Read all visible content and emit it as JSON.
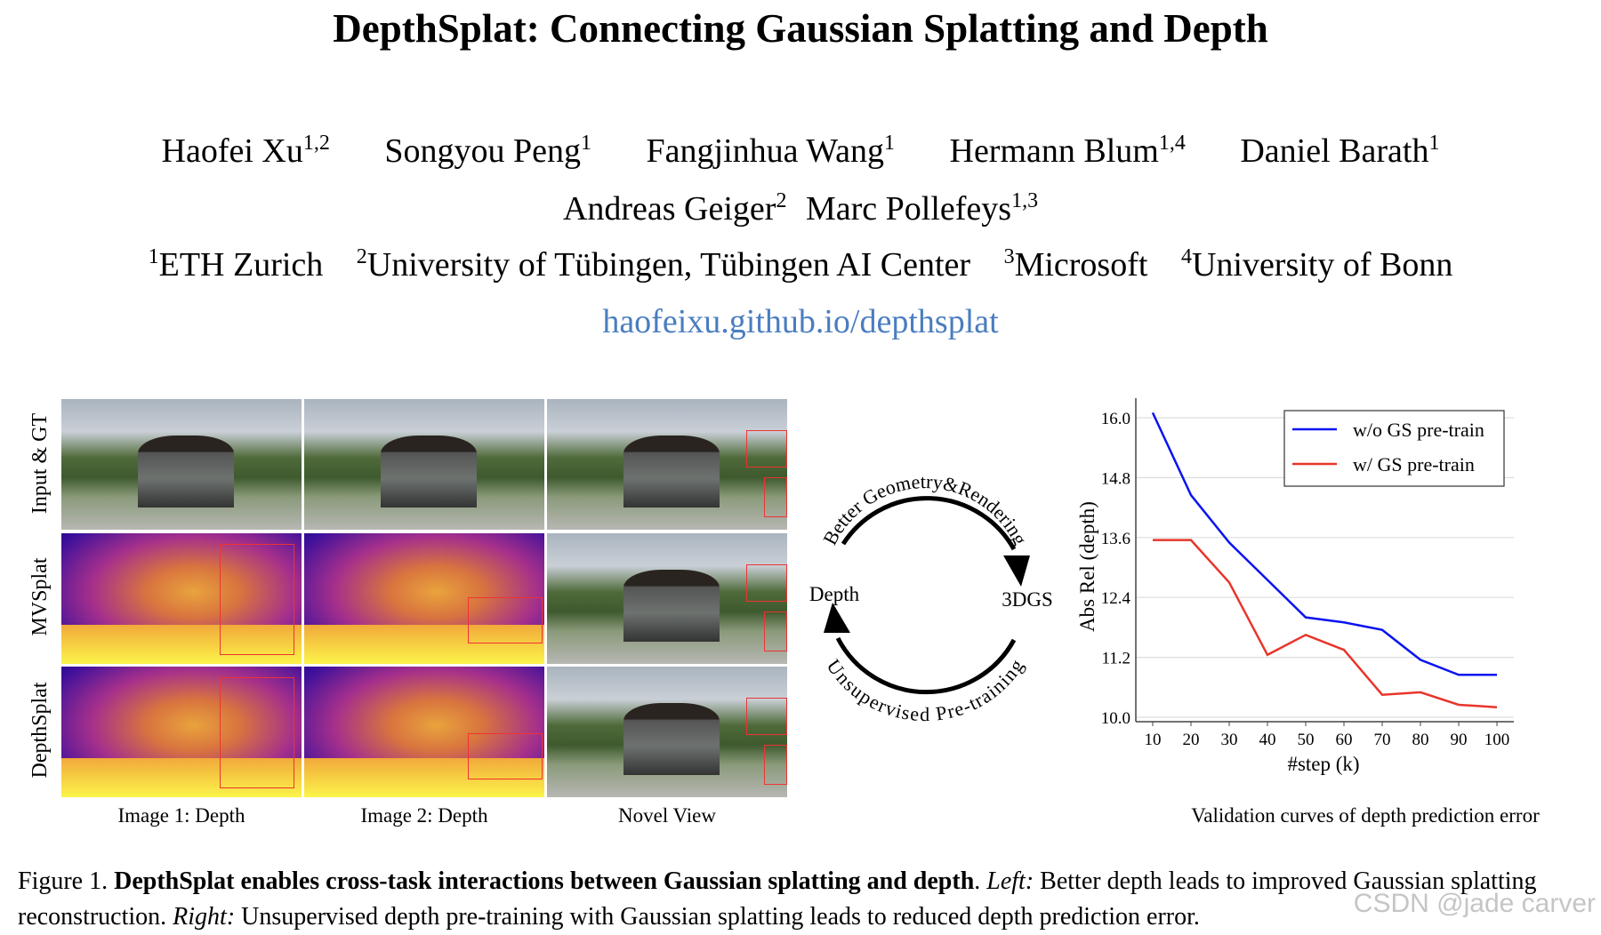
{
  "title": "DepthSplat: Connecting Gaussian Splatting and Depth",
  "authors_line1": [
    {
      "name": "Haofei Xu",
      "sup": "1,2"
    },
    {
      "name": "Songyou Peng",
      "sup": "1"
    },
    {
      "name": "Fangjinhua Wang",
      "sup": "1"
    },
    {
      "name": "Hermann Blum",
      "sup": "1,4"
    },
    {
      "name": "Daniel Barath",
      "sup": "1"
    }
  ],
  "authors_line2": [
    {
      "name": "Andreas Geiger",
      "sup": "2"
    },
    {
      "name": "Marc Pollefeys",
      "sup": "1,3"
    }
  ],
  "affiliations": [
    {
      "sup": "1",
      "name": "ETH Zurich"
    },
    {
      "sup": "2",
      "name": "University of Tübingen, Tübingen AI Center"
    },
    {
      "sup": "3",
      "name": "Microsoft"
    },
    {
      "sup": "4",
      "name": "University of Bonn"
    }
  ],
  "link": "haofeixu.github.io/depthsplat",
  "grid": {
    "row_labels": [
      "Input & GT",
      "MVSplat",
      "DepthSplat"
    ],
    "col_labels": [
      "Image 1: Depth",
      "Image 2: Depth",
      "Novel View"
    ]
  },
  "cycle": {
    "left": "Depth",
    "right": "3DGS",
    "top_arc": "Better Geometry&Rendering",
    "bottom_arc": "Unsupervised Pre-training"
  },
  "chart_caption": "Validation curves of depth prediction error",
  "chart_data": {
    "type": "line",
    "xlabel": "#step (k)",
    "ylabel": "Abs Rel (depth)",
    "x": [
      10,
      20,
      30,
      40,
      50,
      60,
      70,
      80,
      90,
      100
    ],
    "xticks": [
      "10",
      "20",
      "30",
      "40",
      "50",
      "60",
      "70",
      "80",
      "90",
      "100"
    ],
    "yticks": [
      "10.0",
      "11.2",
      "12.4",
      "13.6",
      "14.8",
      "16.0"
    ],
    "ylim": [
      10.0,
      16.0
    ],
    "grid": "horizontal",
    "legend": "top-right",
    "series": [
      {
        "name": "w/o GS pre-train",
        "color": "#0a14f0",
        "values": [
          16.1,
          14.45,
          13.5,
          12.75,
          12.0,
          11.9,
          11.75,
          11.15,
          10.85,
          10.85
        ]
      },
      {
        "name": "w/ GS pre-train",
        "color": "#e8352b",
        "values": [
          13.55,
          13.55,
          12.7,
          11.25,
          11.65,
          11.35,
          10.45,
          10.5,
          10.25,
          10.2
        ]
      }
    ]
  },
  "caption": {
    "label": "Figure 1.",
    "bold": "DepthSplat enables cross-task interactions between Gaussian splatting and depth",
    "left_label": "Left:",
    "left_text": "Better depth leads to improved Gaussian splatting reconstruction.",
    "right_label": "Right:",
    "right_text": "Unsupervised depth pre-training with Gaussian splatting leads to reduced depth prediction error."
  },
  "watermark": "CSDN @jade carver"
}
